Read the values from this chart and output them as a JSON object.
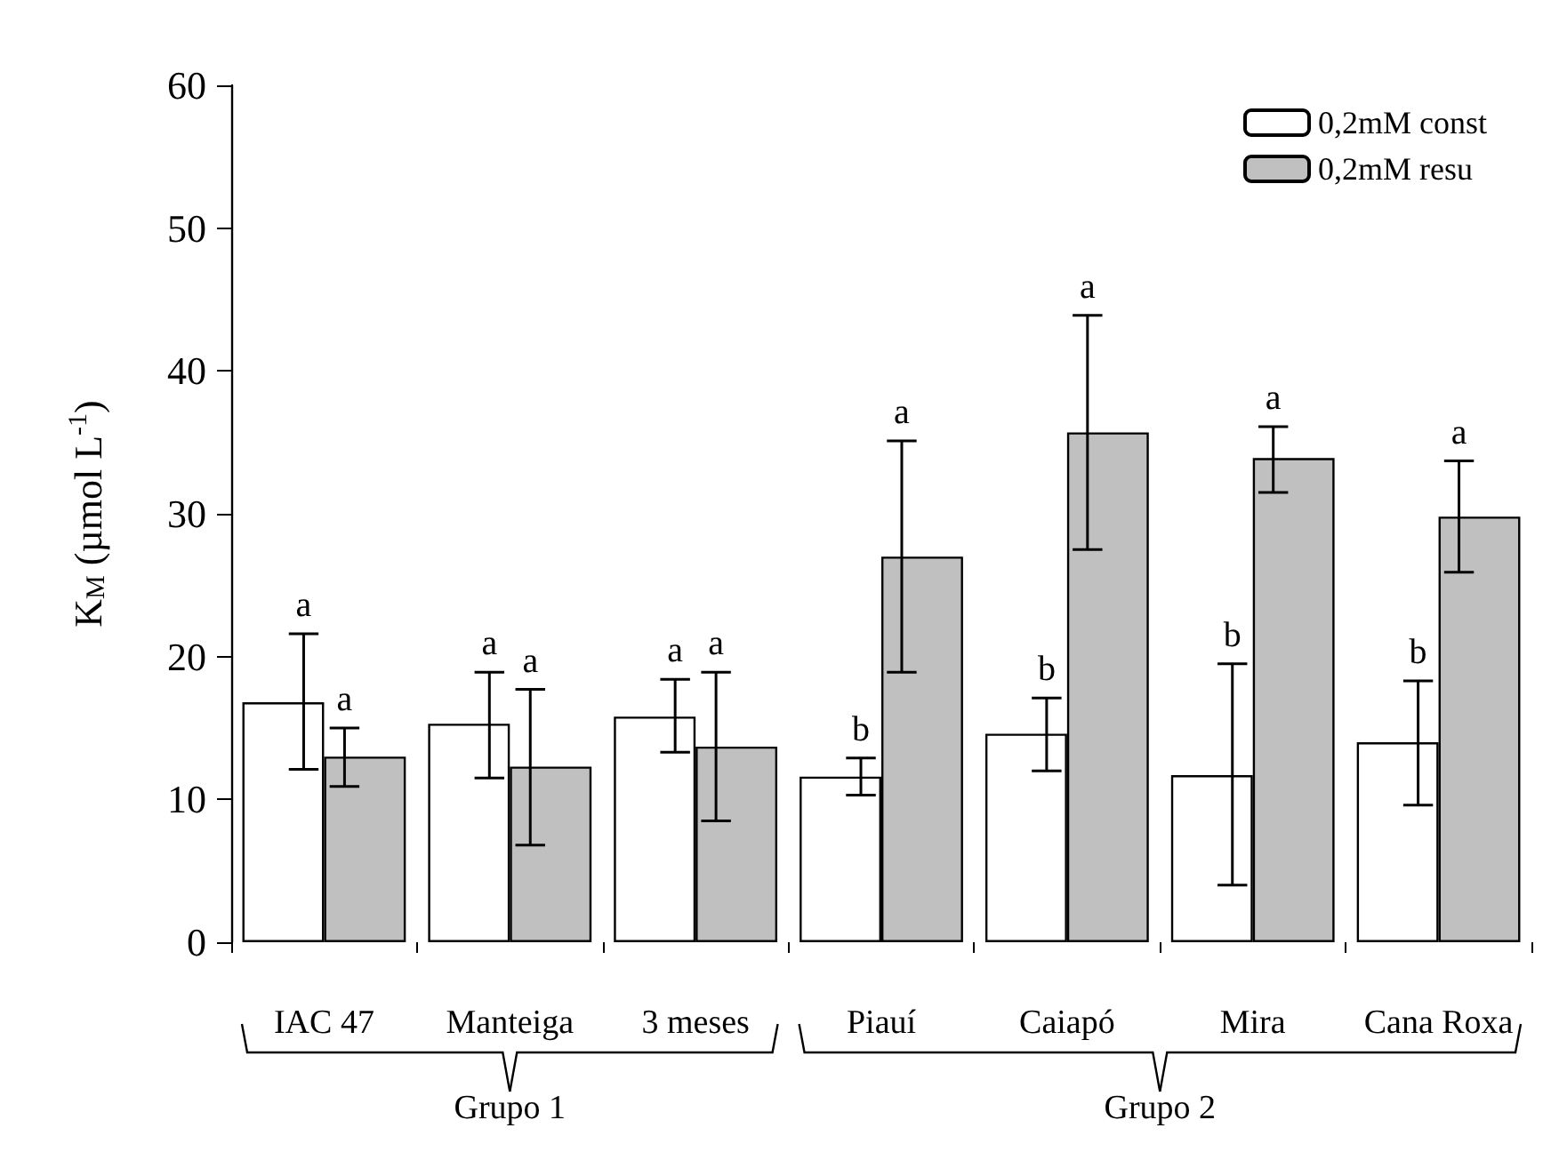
{
  "chart_data": {
    "type": "bar",
    "ylabel": "K$_{M}$ (µmol L$^{-1}$)",
    "categories": [
      "IAC 47",
      "Manteiga",
      "3 meses",
      "Piauí",
      "Caiapó",
      "Mira",
      "Cana Roxa"
    ],
    "series": [
      {
        "name": "0,2mM const",
        "color": "#ffffff",
        "values": [
          16.8,
          15.3,
          15.8,
          11.6,
          14.6,
          11.7,
          14.0
        ],
        "errors": [
          [
            12.1,
            21.6
          ],
          [
            11.5,
            18.9
          ],
          [
            13.3,
            18.4
          ],
          [
            10.3,
            12.9
          ],
          [
            12.0,
            17.1
          ],
          [
            4.0,
            19.5
          ],
          [
            9.6,
            18.3
          ]
        ]
      },
      {
        "name": "0,2mM resu",
        "color": "#c0c0c0",
        "values": [
          13.0,
          12.3,
          13.7,
          27.0,
          35.7,
          33.9,
          29.8
        ],
        "errors": [
          [
            10.9,
            15.0
          ],
          [
            6.8,
            17.7
          ],
          [
            8.5,
            18.9
          ],
          [
            18.9,
            35.1
          ],
          [
            27.5,
            43.9
          ],
          [
            31.5,
            36.1
          ],
          [
            25.9,
            33.7
          ]
        ]
      }
    ],
    "ylim": [
      0,
      60
    ],
    "yticks": [
      0,
      10,
      20,
      30,
      40,
      50,
      60
    ],
    "legend": "top right",
    "annotations": [
      {
        "text": "a",
        "x": "IAC 47",
        "y": 21.6
      },
      {
        "text": "a",
        "x": "IAC 47",
        "y": 15.0
      },
      {
        "text": "a",
        "x": "Manteiga",
        "y": 18.9
      },
      {
        "text": "a",
        "x": "Manteiga",
        "y": 17.7
      },
      {
        "text": "a",
        "x": "3 meses",
        "y": 18.4
      },
      {
        "text": "a",
        "x": "3 meses",
        "y": 18.9
      },
      {
        "text": "b",
        "x": "Piauí",
        "y": 12.9
      },
      {
        "text": "a",
        "x": "Piauí",
        "y": 35.1
      },
      {
        "text": "b",
        "x": "Caiapó",
        "y": 17.1
      },
      {
        "text": "a",
        "x": "Caiapó",
        "y": 43.9
      },
      {
        "text": "b",
        "x": "Mira",
        "y": 19.5
      },
      {
        "text": "a",
        "x": "Mira",
        "y": 36.1
      },
      {
        "text": "b",
        "x": "Cana Roxa",
        "y": 18.3
      },
      {
        "text": "a",
        "x": "Cana Roxa",
        "y": 33.7
      },
      "Grupo 1",
      "Grupo 2"
    ]
  }
}
